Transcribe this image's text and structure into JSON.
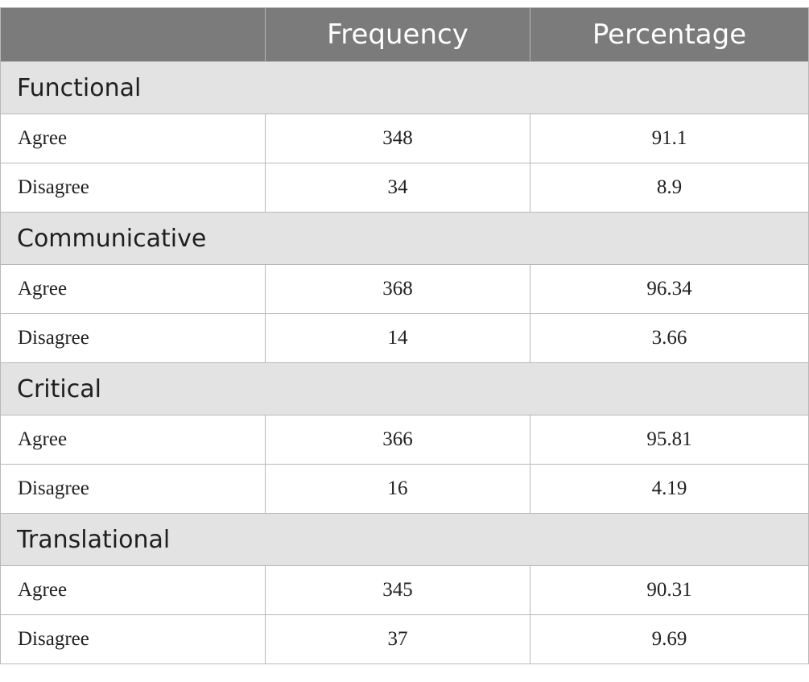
{
  "table": {
    "headers": [
      "",
      "Frequency",
      "Percentage"
    ],
    "sections": [
      {
        "title": "Functional",
        "rows": [
          {
            "label": "Agree",
            "frequency": "348",
            "percentage": "91.1"
          },
          {
            "label": "Disagree",
            "frequency": "34",
            "percentage": "8.9"
          }
        ]
      },
      {
        "title": "Communicative",
        "rows": [
          {
            "label": "Agree",
            "frequency": "368",
            "percentage": "96.34"
          },
          {
            "label": "Disagree",
            "frequency": "14",
            "percentage": "3.66"
          }
        ]
      },
      {
        "title": "Critical",
        "rows": [
          {
            "label": "Agree",
            "frequency": "366",
            "percentage": "95.81"
          },
          {
            "label": "Disagree",
            "frequency": "16",
            "percentage": "4.19"
          }
        ]
      },
      {
        "title": "Translational",
        "rows": [
          {
            "label": "Agree",
            "frequency": "345",
            "percentage": "90.31"
          },
          {
            "label": "Disagree",
            "frequency": "37",
            "percentage": "9.69"
          }
        ]
      }
    ]
  },
  "colors": {
    "header_bg": "#7b7b7b",
    "section_bg": "#e3e3e3",
    "border": "#b8b8b8"
  }
}
